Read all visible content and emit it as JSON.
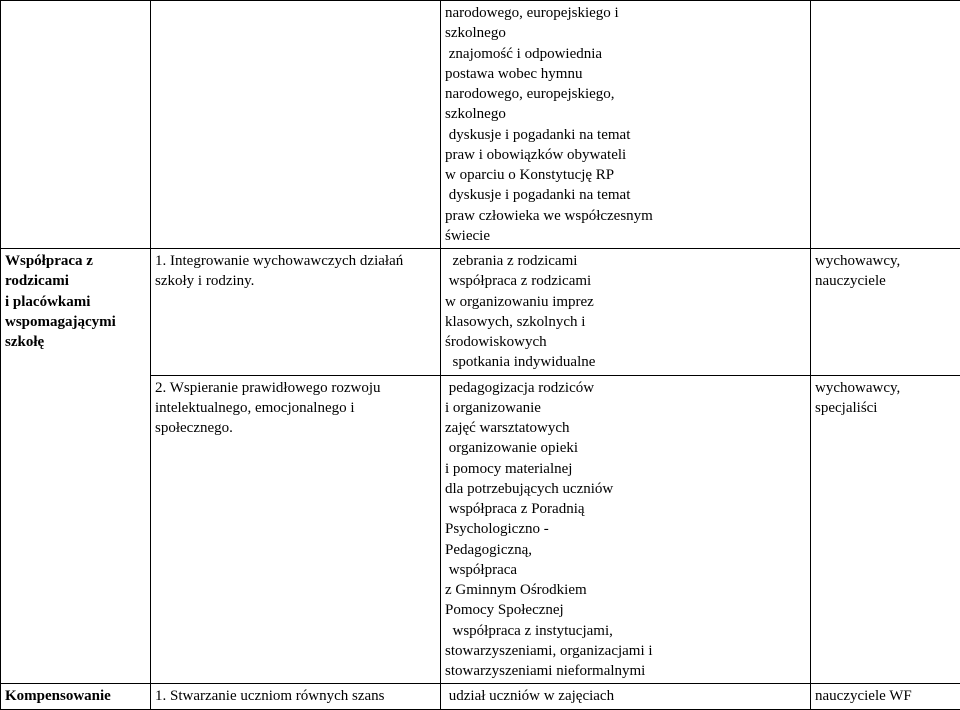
{
  "rows": [
    {
      "col1_lines": [],
      "col2_lines": [],
      "col3_lines": [
        "narodowego, europejskiego i",
        "szkolnego",
        " znajomość i odpowiednia",
        "postawa wobec hymnu",
        "narodowego, europejskiego,",
        "szkolnego",
        " dyskusje i pogadanki na temat",
        "praw i obowiązków obywateli",
        "w oparciu o Konstytucję RP",
        " dyskusje i pogadanki na temat",
        "praw człowieka we współczesnym",
        "świecie"
      ],
      "col4_lines": []
    },
    {
      "col1_lines": [
        "Współpraca z",
        "rodzicami",
        "i placówkami",
        "wspomagającymi",
        "szkołę"
      ],
      "col1_bold": true,
      "col1_rowspan": 2,
      "col2_lines": [
        "1. Integrowanie wychowawczych działań",
        "szkoły i rodziny."
      ],
      "col3_lines": [
        "  zebrania z rodzicami",
        " współpraca z rodzicami",
        "w organizowaniu imprez",
        "klasowych, szkolnych i",
        "środowiskowych",
        "  spotkania indywidualne"
      ],
      "col4_lines": [
        "wychowawcy,",
        "nauczyciele"
      ]
    },
    {
      "col2_lines": [
        "2. Wspieranie prawidłowego rozwoju",
        "intelektualnego, emocjonalnego i",
        "społecznego."
      ],
      "col3_lines": [
        " pedagogizacja rodziców",
        "i organizowanie",
        "zajęć warsztatowych",
        " organizowanie opieki",
        "i pomocy materialnej",
        "dla potrzebujących uczniów",
        " współpraca z Poradnią",
        "Psychologiczno -",
        "Pedagogiczną,",
        " współpraca",
        "z Gminnym Ośrodkiem",
        "Pomocy Społecznej",
        "  współpraca z instytucjami,",
        "stowarzyszeniami, organizacjami i",
        "stowarzyszeniami nieformalnymi"
      ],
      "col4_lines": [
        "wychowawcy,",
        "specjaliści"
      ]
    },
    {
      "col1_lines": [
        "Kompensowanie"
      ],
      "col1_bold": true,
      "col2_lines": [
        "1. Stwarzanie uczniom równych szans"
      ],
      "col3_lines": [
        " udział uczniów w zajęciach"
      ],
      "col4_lines": [
        "nauczyciele WF"
      ]
    }
  ]
}
